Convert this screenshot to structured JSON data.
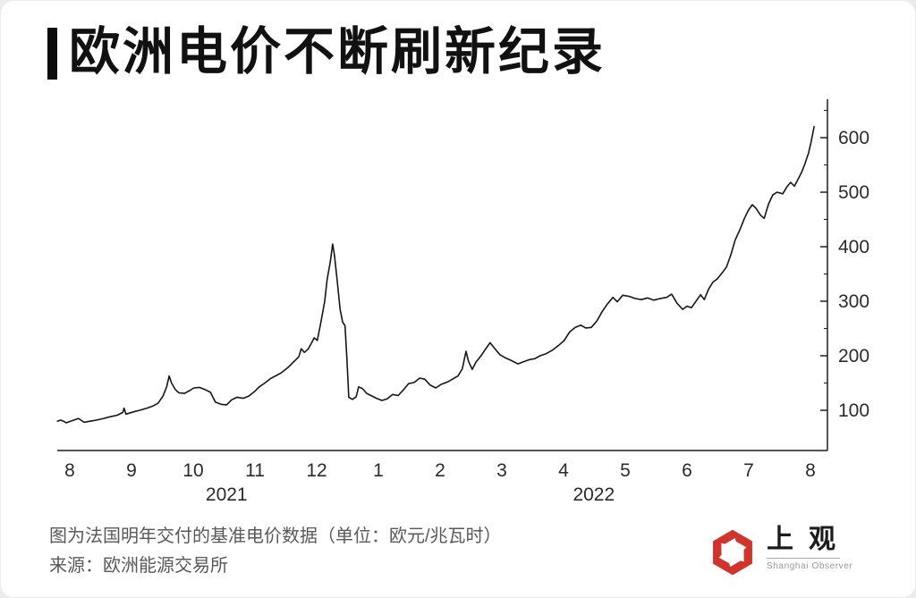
{
  "page": {
    "background": "#ececec",
    "card_background": "#ffffff"
  },
  "title": {
    "text": "欧洲电价不断刷新纪录"
  },
  "footer": {
    "caption_line1": "图为法国明年交付的基准电价数据（单位：欧元/兆瓦时）",
    "caption_line2": "来源：欧洲能源交易所"
  },
  "logo": {
    "cn": "上观",
    "en": "Shanghai Observer",
    "icon": "aperture-icon",
    "color": "#d0342c"
  },
  "chart_data": {
    "type": "line",
    "title": "欧洲电价不断刷新纪录",
    "xlabel": "",
    "ylabel": "",
    "unit": "欧元/兆瓦时 (EUR/MWh)",
    "x_description": "months from Aug 2021 (index 0) to Aug 2022 (index 12)",
    "x_tick_labels": [
      "8",
      "9",
      "10",
      "11",
      "12",
      "1",
      "2",
      "3",
      "4",
      "5",
      "6",
      "7",
      "8"
    ],
    "year_labels": [
      {
        "text": "2021",
        "month_index": 2.54
      },
      {
        "text": "2022",
        "month_index": 8.49
      }
    ],
    "y_ticks": [
      100,
      200,
      300,
      400,
      500,
      600
    ],
    "y_minor_ticks": [
      150,
      250,
      350,
      450,
      550,
      650
    ],
    "ylim": [
      26,
      670
    ],
    "xlim": [
      -0.2,
      12.28
    ],
    "grid": false,
    "legend": "none",
    "line_color": "#161616",
    "axis_color": "#1f1f1f",
    "tick_label_color": "#2b2b2b",
    "series": [
      {
        "name": "法国明年交付基准电价",
        "points": [
          [
            -0.2,
            80
          ],
          [
            -0.15,
            82
          ],
          [
            -0.1,
            80
          ],
          [
            -0.06,
            77
          ],
          [
            0.04,
            81
          ],
          [
            0.14,
            85
          ],
          [
            0.23,
            78
          ],
          [
            0.33,
            80
          ],
          [
            0.43,
            82
          ],
          [
            0.55,
            85
          ],
          [
            0.65,
            88
          ],
          [
            0.77,
            91
          ],
          [
            0.86,
            96
          ],
          [
            0.88,
            104
          ],
          [
            0.91,
            93
          ],
          [
            1.03,
            97
          ],
          [
            1.13,
            100
          ],
          [
            1.25,
            104
          ],
          [
            1.35,
            108
          ],
          [
            1.43,
            113
          ],
          [
            1.51,
            126
          ],
          [
            1.57,
            143
          ],
          [
            1.61,
            163
          ],
          [
            1.65,
            150
          ],
          [
            1.71,
            138
          ],
          [
            1.77,
            132
          ],
          [
            1.86,
            131
          ],
          [
            1.94,
            136
          ],
          [
            2.01,
            141
          ],
          [
            2.1,
            142
          ],
          [
            2.19,
            138
          ],
          [
            2.28,
            133
          ],
          [
            2.36,
            115
          ],
          [
            2.45,
            111
          ],
          [
            2.54,
            110
          ],
          [
            2.62,
            119
          ],
          [
            2.71,
            124
          ],
          [
            2.81,
            122
          ],
          [
            2.9,
            126
          ],
          [
            2.99,
            134
          ],
          [
            3.07,
            143
          ],
          [
            3.16,
            150
          ],
          [
            3.25,
            158
          ],
          [
            3.35,
            164
          ],
          [
            3.43,
            169
          ],
          [
            3.54,
            179
          ],
          [
            3.62,
            188
          ],
          [
            3.71,
            198
          ],
          [
            3.75,
            213
          ],
          [
            3.8,
            206
          ],
          [
            3.86,
            212
          ],
          [
            3.91,
            222
          ],
          [
            3.96,
            233
          ],
          [
            4.01,
            228
          ],
          [
            4.07,
            262
          ],
          [
            4.13,
            300
          ],
          [
            4.17,
            340
          ],
          [
            4.22,
            372
          ],
          [
            4.26,
            405
          ],
          [
            4.29,
            383
          ],
          [
            4.33,
            340
          ],
          [
            4.38,
            285
          ],
          [
            4.42,
            262
          ],
          [
            4.46,
            255
          ],
          [
            4.49,
            195
          ],
          [
            4.52,
            124
          ],
          [
            4.58,
            120
          ],
          [
            4.64,
            125
          ],
          [
            4.68,
            143
          ],
          [
            4.74,
            140
          ],
          [
            4.81,
            131
          ],
          [
            4.88,
            127
          ],
          [
            4.97,
            122
          ],
          [
            5.06,
            118
          ],
          [
            5.14,
            121
          ],
          [
            5.23,
            129
          ],
          [
            5.32,
            127
          ],
          [
            5.41,
            138
          ],
          [
            5.49,
            149
          ],
          [
            5.58,
            151
          ],
          [
            5.67,
            159
          ],
          [
            5.75,
            157
          ],
          [
            5.84,
            146
          ],
          [
            5.93,
            141
          ],
          [
            6.01,
            147
          ],
          [
            6.12,
            152
          ],
          [
            6.2,
            157
          ],
          [
            6.29,
            163
          ],
          [
            6.36,
            176
          ],
          [
            6.42,
            208
          ],
          [
            6.46,
            190
          ],
          [
            6.52,
            175
          ],
          [
            6.58,
            188
          ],
          [
            6.67,
            201
          ],
          [
            6.74,
            213
          ],
          [
            6.81,
            224
          ],
          [
            6.88,
            214
          ],
          [
            6.97,
            202
          ],
          [
            7.06,
            196
          ],
          [
            7.16,
            191
          ],
          [
            7.26,
            185
          ],
          [
            7.35,
            189
          ],
          [
            7.45,
            193
          ],
          [
            7.54,
            195
          ],
          [
            7.62,
            200
          ],
          [
            7.72,
            204
          ],
          [
            7.83,
            211
          ],
          [
            7.93,
            220
          ],
          [
            8.01,
            228
          ],
          [
            8.1,
            244
          ],
          [
            8.19,
            252
          ],
          [
            8.28,
            256
          ],
          [
            8.36,
            251
          ],
          [
            8.45,
            252
          ],
          [
            8.54,
            264
          ],
          [
            8.62,
            280
          ],
          [
            8.71,
            295
          ],
          [
            8.8,
            307
          ],
          [
            8.87,
            299
          ],
          [
            8.96,
            311
          ],
          [
            9.06,
            309
          ],
          [
            9.16,
            305
          ],
          [
            9.26,
            303
          ],
          [
            9.36,
            306
          ],
          [
            9.46,
            302
          ],
          [
            9.57,
            305
          ],
          [
            9.67,
            307
          ],
          [
            9.75,
            313
          ],
          [
            9.84,
            296
          ],
          [
            9.93,
            285
          ],
          [
            10.0,
            291
          ],
          [
            10.07,
            288
          ],
          [
            10.14,
            299
          ],
          [
            10.22,
            312
          ],
          [
            10.28,
            303
          ],
          [
            10.35,
            322
          ],
          [
            10.42,
            335
          ],
          [
            10.49,
            341
          ],
          [
            10.57,
            352
          ],
          [
            10.64,
            363
          ],
          [
            10.71,
            385
          ],
          [
            10.78,
            412
          ],
          [
            10.86,
            432
          ],
          [
            10.93,
            452
          ],
          [
            11.0,
            468
          ],
          [
            11.06,
            477
          ],
          [
            11.12,
            470
          ],
          [
            11.19,
            458
          ],
          [
            11.25,
            452
          ],
          [
            11.32,
            478
          ],
          [
            11.39,
            495
          ],
          [
            11.46,
            500
          ],
          [
            11.55,
            497
          ],
          [
            11.62,
            510
          ],
          [
            11.68,
            518
          ],
          [
            11.74,
            511
          ],
          [
            11.8,
            524
          ],
          [
            11.86,
            537
          ],
          [
            11.91,
            552
          ],
          [
            11.97,
            572
          ],
          [
            12.01,
            592
          ],
          [
            12.06,
            620
          ]
        ]
      }
    ]
  }
}
